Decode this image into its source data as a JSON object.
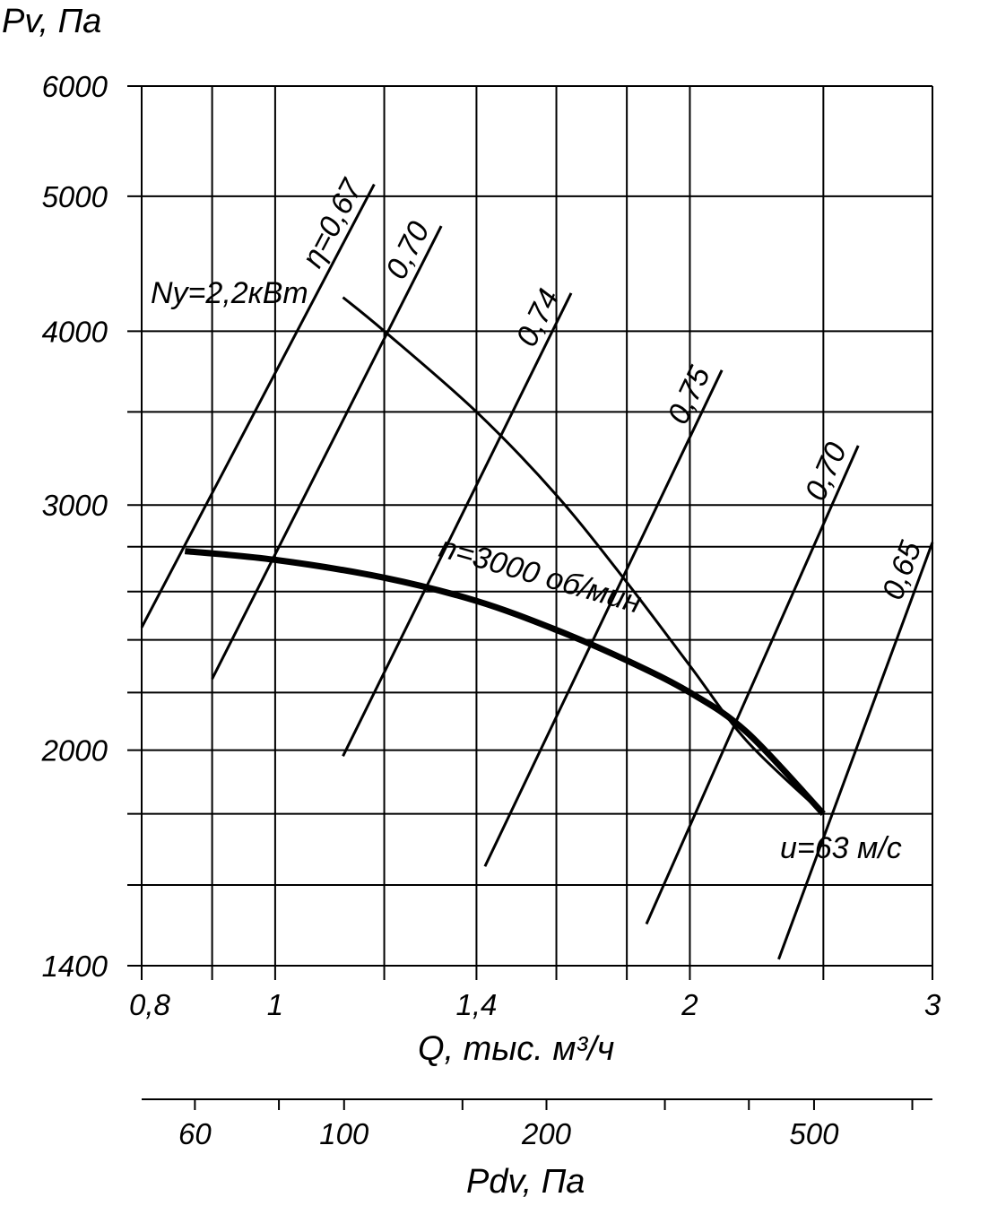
{
  "chart_data": {
    "type": "line",
    "y_axis": {
      "label": "Pv, Па",
      "scale": "log",
      "range": [
        1400,
        6000
      ],
      "tick_labels": [
        {
          "value": 6000,
          "text": "6000"
        },
        {
          "value": 5000,
          "text": "5000"
        },
        {
          "value": 4000,
          "text": "4000"
        },
        {
          "value": 3000,
          "text": "3000"
        },
        {
          "value": 2000,
          "text": "2000"
        },
        {
          "value": 1400,
          "text": "1400"
        }
      ],
      "gridlines": [
        1400,
        1600,
        1800,
        2000,
        2200,
        2400,
        2600,
        2800,
        3000,
        3500,
        4000,
        5000,
        6000
      ]
    },
    "x_axis": {
      "label": "Q, тыс. м³/ч",
      "scale": "log",
      "range": [
        0.8,
        3
      ],
      "tick_labels": [
        {
          "value": 0.8,
          "text": "0,8"
        },
        {
          "value": 1,
          "text": "1"
        },
        {
          "value": 1.4,
          "text": "1,4"
        },
        {
          "value": 2,
          "text": "2"
        },
        {
          "value": 3,
          "text": "3"
        }
      ],
      "gridlines": [
        0.8,
        0.9,
        1,
        1.2,
        1.4,
        1.6,
        1.8,
        2,
        2.5,
        3
      ]
    },
    "secondary_axis": {
      "label": "Pdv, Па",
      "scale": "log",
      "range": [
        50,
        750
      ],
      "tick_labels": [
        {
          "value": 60,
          "text": "60"
        },
        {
          "value": 100,
          "text": "100"
        },
        {
          "value": 200,
          "text": "200"
        },
        {
          "value": 500,
          "text": "500"
        }
      ],
      "minor_ticks": [
        60,
        80,
        100,
        150,
        200,
        300,
        400,
        500,
        700
      ]
    },
    "grid": true,
    "curves": {
      "pressure": {
        "label": "n=3000 об/мин",
        "points": [
          [
            0.86,
            2780
          ],
          [
            1.0,
            2740
          ],
          [
            1.2,
            2660
          ],
          [
            1.4,
            2560
          ],
          [
            1.6,
            2440
          ],
          [
            1.8,
            2320
          ],
          [
            2.0,
            2200
          ],
          [
            2.2,
            2060
          ],
          [
            2.5,
            1800
          ]
        ]
      },
      "power": {
        "label": "Ny=2,2кВт",
        "points": [
          [
            1.12,
            4230
          ],
          [
            1.2,
            4000
          ],
          [
            1.4,
            3500
          ],
          [
            1.6,
            3050
          ],
          [
            1.8,
            2640
          ],
          [
            2.0,
            2300
          ],
          [
            2.2,
            2030
          ],
          [
            2.5,
            1800
          ]
        ]
      },
      "velocity": {
        "label": "u=63 м/с",
        "point": [
          2.5,
          1800
        ]
      }
    },
    "efficiency_lines": [
      {
        "label": "η=0,67",
        "start": [
          0.8,
          2450
        ],
        "end": [
          1.18,
          5100
        ]
      },
      {
        "label": "0,70",
        "start": [
          0.9,
          2250
        ],
        "end": [
          1.32,
          4760
        ]
      },
      {
        "label": "0,74",
        "start": [
          1.12,
          1980
        ],
        "end": [
          1.64,
          4260
        ]
      },
      {
        "label": "0,75",
        "start": [
          1.42,
          1650
        ],
        "end": [
          2.11,
          3750
        ]
      },
      {
        "label": "0,70",
        "start": [
          1.86,
          1500
        ],
        "end": [
          2.65,
          3310
        ]
      },
      {
        "label": "0,65",
        "start": [
          2.32,
          1415
        ],
        "end": [
          3.0,
          2820
        ]
      }
    ]
  }
}
